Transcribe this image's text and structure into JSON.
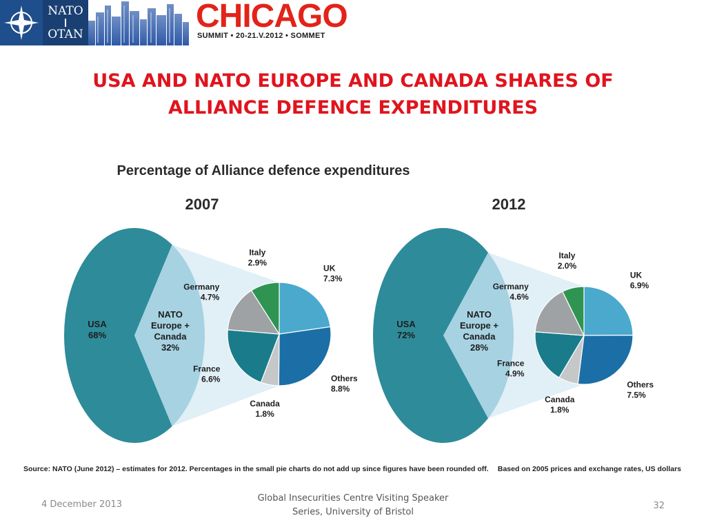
{
  "banner": {
    "logo_line1": "NATO",
    "logo_line2": "OTAN",
    "city": "CHICAGO",
    "summit_line": "SUMMIT • 20-21.V.2012 • SOMMET"
  },
  "slide": {
    "title_line1": "USA AND NATO EUROPE AND CANADA SHARES OF",
    "title_line2": "ALLIANCE DEFENCE EXPENDITURES"
  },
  "footer": {
    "date": "4 December 2013",
    "center_line1": "Global Insecurities Centre Visiting Speaker",
    "center_line2": "Series, University of Bristol",
    "page_number": "32"
  },
  "colors": {
    "title_red": "#e0141e",
    "usa_teal": "#2e8b9a",
    "europe_light": "#a6d2e2",
    "connector": "#e1eff6",
    "uk": "#4aa9cd",
    "others": "#1b6fa6",
    "canada": "#c5c7c8",
    "france": "#1a7c8a",
    "germany": "#9fa2a4",
    "italy": "#2f9452"
  },
  "chart_data": {
    "title": "Percentage of Alliance defence expenditures",
    "source_note": "Source: NATO (June 2012) – estimates for 2012. Percentages in the small pie charts do not add up since figures have been rounded off.",
    "prices_note": "Based on 2005 prices and exchange rates, US dollars",
    "charts": [
      {
        "year": "2007",
        "type": "pie",
        "main": [
          {
            "name": "USA",
            "label": "68%",
            "value": 68
          },
          {
            "name": "NATO Europe + Canada",
            "label": "32%",
            "value": 32
          }
        ],
        "breakdown": [
          {
            "name": "UK",
            "label": "7.3%",
            "value": 7.3
          },
          {
            "name": "Others",
            "label": "8.8%",
            "value": 8.8
          },
          {
            "name": "Canada",
            "label": "1.8%",
            "value": 1.8
          },
          {
            "name": "France",
            "label": "6.6%",
            "value": 6.6
          },
          {
            "name": "Germany",
            "label": "4.7%",
            "value": 4.7
          },
          {
            "name": "Italy",
            "label": "2.9%",
            "value": 2.9
          }
        ]
      },
      {
        "year": "2012",
        "type": "pie",
        "main": [
          {
            "name": "USA",
            "label": "72%",
            "value": 72
          },
          {
            "name": "NATO Europe + Canada",
            "label": "28%",
            "value": 28
          }
        ],
        "breakdown": [
          {
            "name": "UK",
            "label": "6.9%",
            "value": 6.9
          },
          {
            "name": "Others",
            "label": "7.5%",
            "value": 7.5
          },
          {
            "name": "Canada",
            "label": "1.8%",
            "value": 1.8
          },
          {
            "name": "France",
            "label": "4.9%",
            "value": 4.9
          },
          {
            "name": "Germany",
            "label": "4.6%",
            "value": 4.6
          },
          {
            "name": "Italy",
            "label": "2.0%",
            "value": 2.0
          }
        ]
      }
    ]
  }
}
